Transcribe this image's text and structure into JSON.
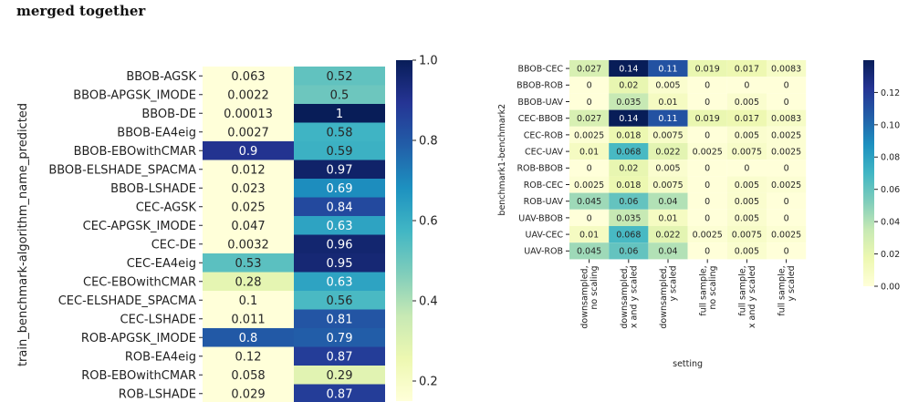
{
  "caption": "merged together",
  "colors": {
    "cmap_name": "YlGnBu",
    "stops": [
      "#ffffd9",
      "#edf8b1",
      "#c7e9b4",
      "#7fcdbb",
      "#41b6c4",
      "#1d91c0",
      "#225ea8",
      "#253494",
      "#081d58"
    ]
  },
  "chart_data": [
    {
      "type": "heatmap",
      "ylabel": "train_benchmark-algorithm_name_predicted",
      "xlabel": "",
      "rows": [
        "BBOB-AGSK",
        "BBOB-APGSK_IMODE",
        "BBOB-DE",
        "BBOB-EA4eig",
        "BBOB-EBOwithCMAR",
        "BBOB-ELSHADE_SPACMA",
        "BBOB-LSHADE",
        "CEC-AGSK",
        "CEC-APGSK_IMODE",
        "CEC-DE",
        "CEC-EA4eig",
        "CEC-EBOwithCMAR",
        "CEC-ELSHADE_SPACMA",
        "CEC-LSHADE",
        "ROB-APGSK_IMODE",
        "ROB-EA4eig",
        "ROB-EBOwithCMAR",
        "ROB-LSHADE"
      ],
      "columns": [
        "",
        ""
      ],
      "values": [
        [
          "0.063",
          "0.52"
        ],
        [
          "0.0022",
          "0.5"
        ],
        [
          "0.00013",
          "1"
        ],
        [
          "0.0027",
          "0.58"
        ],
        [
          "0.9",
          "0.59"
        ],
        [
          "0.012",
          "0.97"
        ],
        [
          "0.023",
          "0.69"
        ],
        [
          "0.025",
          "0.84"
        ],
        [
          "0.047",
          "0.63"
        ],
        [
          "0.0032",
          "0.96"
        ],
        [
          "0.53",
          "0.95"
        ],
        [
          "0.28",
          "0.63"
        ],
        [
          "0.1",
          "0.56"
        ],
        [
          "0.011",
          "0.81"
        ],
        [
          "0.8",
          "0.79"
        ],
        [
          "0.12",
          "0.87"
        ],
        [
          "0.058",
          "0.29"
        ],
        [
          "0.029",
          "0.87"
        ]
      ],
      "colorbar": {
        "range": [
          0.15,
          1.0
        ],
        "ticks": [
          "1.0",
          "0.8",
          "0.6",
          "0.4",
          "0.2"
        ],
        "tick_values": [
          1.0,
          0.8,
          0.6,
          0.4,
          0.2
        ]
      }
    },
    {
      "type": "heatmap",
      "ylabel": "benchmark1-benchmark2",
      "xlabel": "setting",
      "rows": [
        "BBOB-CEC",
        "BBOB-ROB",
        "BBOB-UAV",
        "CEC-BBOB",
        "CEC-ROB",
        "CEC-UAV",
        "ROB-BBOB",
        "ROB-CEC",
        "ROB-UAV",
        "UAV-BBOB",
        "UAV-CEC",
        "UAV-ROB"
      ],
      "columns": [
        [
          "downsampled,",
          "no scaling"
        ],
        [
          "downsampled,",
          "x and y scaled"
        ],
        [
          "downsampled,",
          "y scaled"
        ],
        [
          "full sample,",
          "no scaling"
        ],
        [
          "full sample,",
          "x and y scaled"
        ],
        [
          "full sample,",
          "y scaled"
        ]
      ],
      "values": [
        [
          "0.027",
          "0.14",
          "0.11",
          "0.019",
          "0.017",
          "0.0083"
        ],
        [
          "0",
          "0.02",
          "0.005",
          "0",
          "0",
          "0"
        ],
        [
          "0",
          "0.035",
          "0.01",
          "0",
          "0.005",
          "0"
        ],
        [
          "0.027",
          "0.14",
          "0.11",
          "0.019",
          "0.017",
          "0.0083"
        ],
        [
          "0.0025",
          "0.018",
          "0.0075",
          "0",
          "0.005",
          "0.0025"
        ],
        [
          "0.01",
          "0.068",
          "0.022",
          "0.0025",
          "0.0075",
          "0.0025"
        ],
        [
          "0",
          "0.02",
          "0.005",
          "0",
          "0",
          "0"
        ],
        [
          "0.0025",
          "0.018",
          "0.0075",
          "0",
          "0.005",
          "0.0025"
        ],
        [
          "0.045",
          "0.06",
          "0.04",
          "0",
          "0.005",
          "0"
        ],
        [
          "0",
          "0.035",
          "0.01",
          "0",
          "0.005",
          "0"
        ],
        [
          "0.01",
          "0.068",
          "0.022",
          "0.0025",
          "0.0075",
          "0.0025"
        ],
        [
          "0.045",
          "0.06",
          "0.04",
          "0",
          "0.005",
          "0"
        ]
      ],
      "colorbar": {
        "range": [
          0.0,
          0.14
        ],
        "ticks": [
          "0.12",
          "0.10",
          "0.08",
          "0.06",
          "0.04",
          "0.02",
          "0.00"
        ],
        "tick_values": [
          0.12,
          0.1,
          0.08,
          0.06,
          0.04,
          0.02,
          0.0
        ]
      }
    }
  ]
}
